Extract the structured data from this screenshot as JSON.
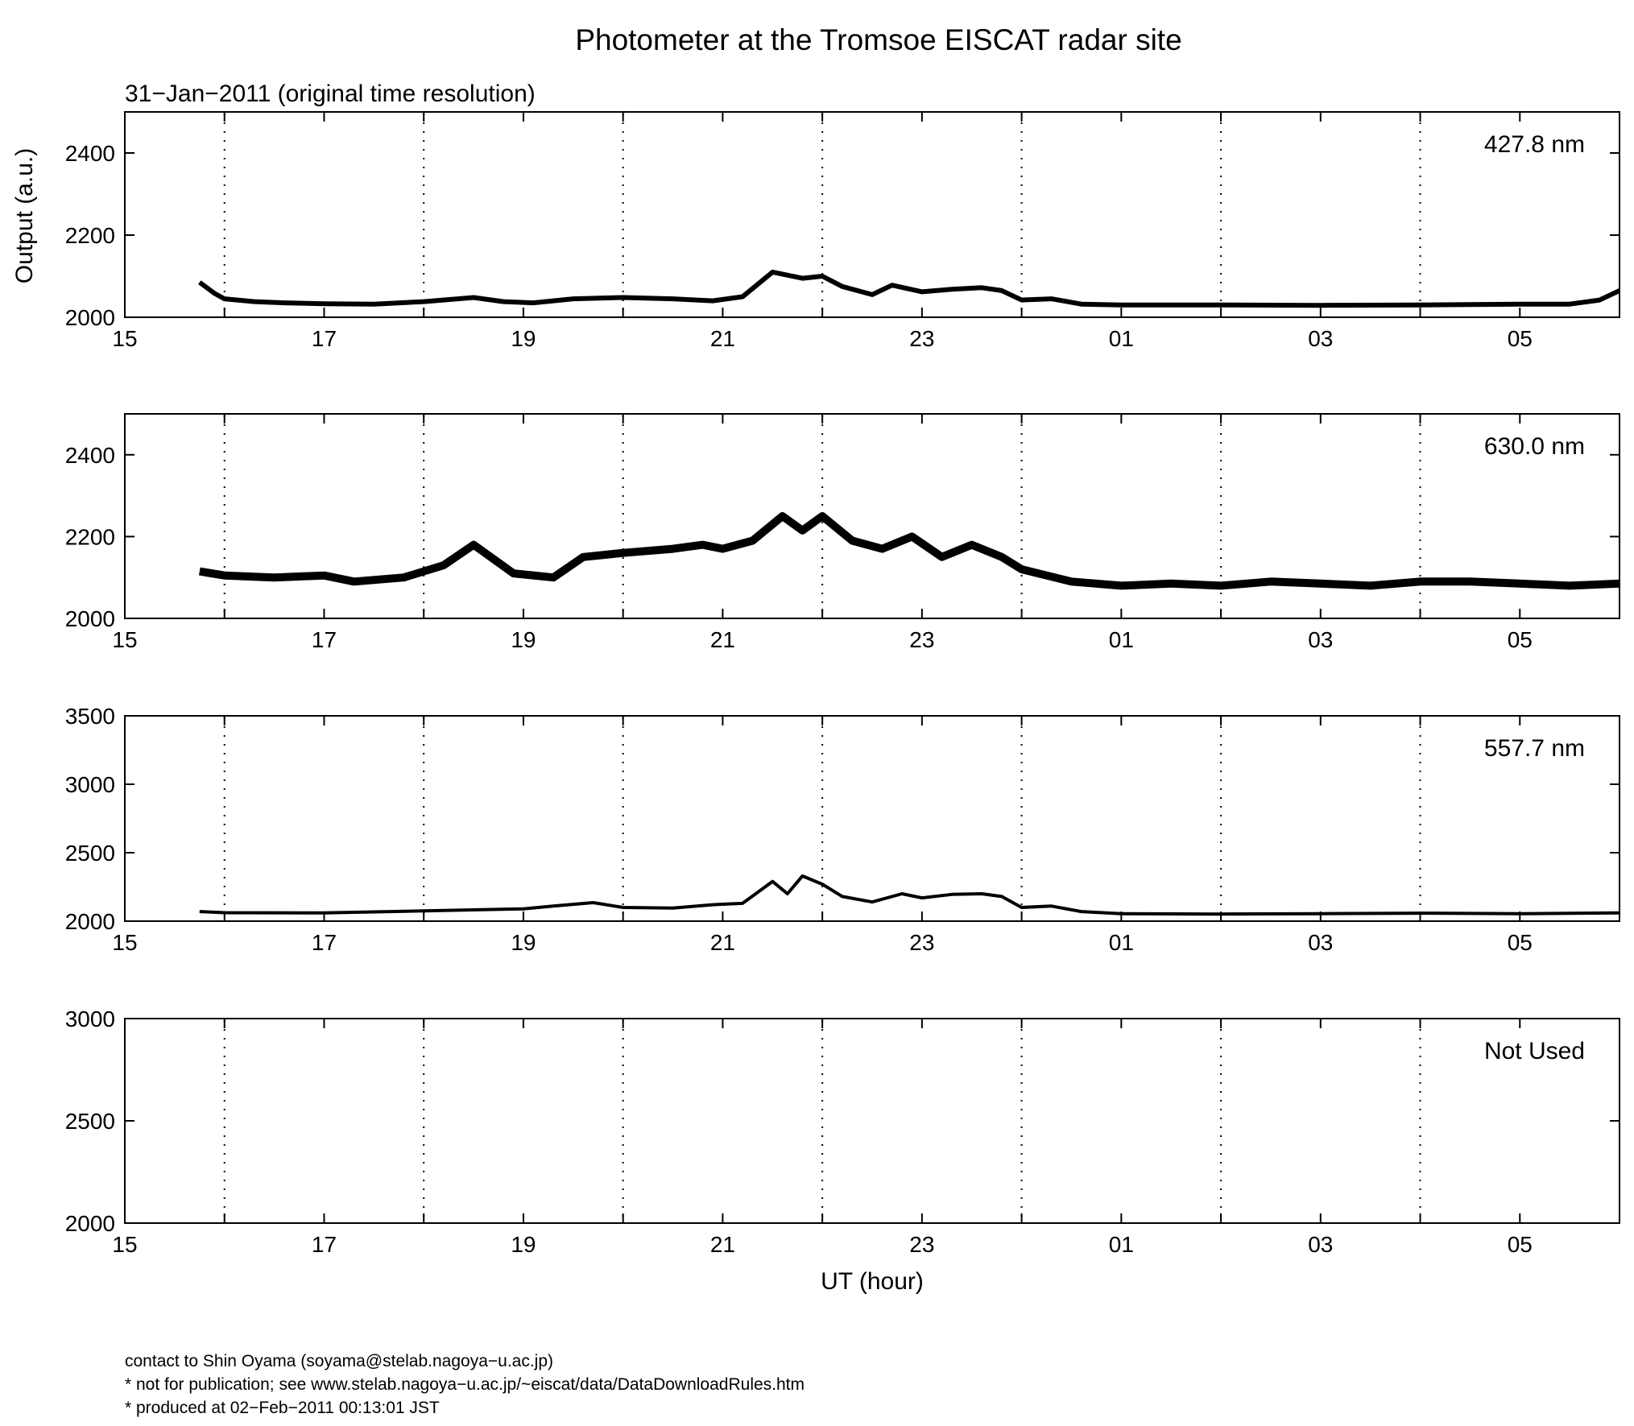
{
  "figure": {
    "title": "Photometer at the Tromsoe EISCAT radar site",
    "subtitle": "31−Jan−2011 (original time resolution)",
    "ylabel": "Output (a.u.)",
    "xlabel": "UT (hour)",
    "footer": [
      "contact to Shin Oyama (soyama@stelab.nagoya−u.ac.jp)",
      "* not for publication; see www.stelab.nagoya−u.ac.jp/~eiscat/data/DataDownloadRules.htm",
      "* produced at 02−Feb−2011 00:13:01 JST"
    ]
  },
  "chart_data": [
    {
      "type": "line",
      "panel": "427.8 nm",
      "x_unit": "hours after 15 UT",
      "xlim": [
        0,
        15
      ],
      "x_tick_values": [
        0,
        2,
        4,
        6,
        8,
        10,
        12,
        14
      ],
      "x_tick_labels": [
        "15",
        "17",
        "19",
        "21",
        "23",
        "01",
        "03",
        "05"
      ],
      "x_minor_grid": [
        1,
        3,
        5,
        7,
        9,
        11,
        13
      ],
      "ylim": [
        2000,
        2500
      ],
      "y_ticks": [
        2000,
        2200,
        2400
      ],
      "grid": "dotted vertical at odd hours",
      "ylabel": "Output (a.u.)",
      "series": [
        {
          "x": [
            0.75,
            0.9,
            1.0,
            1.3,
            1.6,
            2.0,
            2.5,
            3.0,
            3.5,
            3.8,
            4.1,
            4.5,
            5.0,
            5.5,
            5.9,
            6.2,
            6.5,
            6.8,
            7.0,
            7.2,
            7.5,
            7.7,
            8.0,
            8.3,
            8.6,
            8.8,
            9.0,
            9.3,
            9.6,
            10.0,
            11.0,
            12.0,
            13.0,
            14.0,
            14.5,
            14.8,
            15.0
          ],
          "y": [
            2085,
            2058,
            2045,
            2038,
            2035,
            2033,
            2032,
            2038,
            2048,
            2038,
            2035,
            2045,
            2048,
            2045,
            2040,
            2050,
            2110,
            2095,
            2100,
            2075,
            2055,
            2078,
            2062,
            2068,
            2072,
            2065,
            2042,
            2045,
            2032,
            2030,
            2030,
            2029,
            2030,
            2032,
            2032,
            2042,
            2065
          ]
        }
      ]
    },
    {
      "type": "line",
      "panel": "630.0 nm",
      "x_unit": "hours after 15 UT",
      "xlim": [
        0,
        15
      ],
      "x_tick_values": [
        0,
        2,
        4,
        6,
        8,
        10,
        12,
        14
      ],
      "x_tick_labels": [
        "15",
        "17",
        "19",
        "21",
        "23",
        "01",
        "03",
        "05"
      ],
      "ylim": [
        2000,
        2500
      ],
      "y_ticks": [
        2000,
        2200,
        2400
      ],
      "series": [
        {
          "x": [
            0.75,
            1.0,
            1.5,
            2.0,
            2.3,
            2.8,
            3.2,
            3.5,
            3.9,
            4.3,
            4.6,
            5.0,
            5.5,
            5.8,
            6.0,
            6.3,
            6.6,
            6.8,
            7.0,
            7.3,
            7.6,
            7.9,
            8.2,
            8.5,
            8.8,
            9.0,
            9.5,
            10.0,
            10.5,
            11.0,
            11.5,
            12.0,
            12.5,
            13.0,
            13.5,
            14.0,
            14.5,
            15.0
          ],
          "y": [
            2115,
            2105,
            2100,
            2105,
            2090,
            2100,
            2130,
            2180,
            2110,
            2100,
            2150,
            2160,
            2170,
            2180,
            2170,
            2190,
            2250,
            2215,
            2250,
            2190,
            2170,
            2200,
            2150,
            2180,
            2150,
            2120,
            2090,
            2080,
            2085,
            2080,
            2090,
            2085,
            2080,
            2090,
            2090,
            2085,
            2080,
            2085
          ]
        }
      ]
    },
    {
      "type": "line",
      "panel": "557.7 nm",
      "x_unit": "hours after 15 UT",
      "xlim": [
        0,
        15
      ],
      "x_tick_values": [
        0,
        2,
        4,
        6,
        8,
        10,
        12,
        14
      ],
      "x_tick_labels": [
        "15",
        "17",
        "19",
        "21",
        "23",
        "01",
        "03",
        "05"
      ],
      "ylim": [
        2000,
        3500
      ],
      "y_ticks": [
        2000,
        2500,
        3000,
        3500
      ],
      "series": [
        {
          "x": [
            0.75,
            1.0,
            2.0,
            3.0,
            4.0,
            4.3,
            4.7,
            5.0,
            5.5,
            5.9,
            6.2,
            6.5,
            6.65,
            6.8,
            7.0,
            7.2,
            7.5,
            7.8,
            8.0,
            8.3,
            8.6,
            8.8,
            9.0,
            9.3,
            9.6,
            10.0,
            11.0,
            12.0,
            13.0,
            14.0,
            15.0
          ],
          "y": [
            2070,
            2062,
            2060,
            2075,
            2090,
            2110,
            2135,
            2100,
            2095,
            2120,
            2130,
            2290,
            2200,
            2330,
            2270,
            2180,
            2140,
            2200,
            2170,
            2195,
            2200,
            2180,
            2100,
            2110,
            2070,
            2055,
            2052,
            2055,
            2058,
            2055,
            2060
          ]
        }
      ]
    },
    {
      "type": "line",
      "panel": "Not Used",
      "x_unit": "hours after 15 UT",
      "xlim": [
        0,
        15
      ],
      "x_tick_values": [
        0,
        2,
        4,
        6,
        8,
        10,
        12,
        14
      ],
      "x_tick_labels": [
        "15",
        "17",
        "19",
        "21",
        "23",
        "01",
        "03",
        "05"
      ],
      "ylim": [
        2000,
        3000
      ],
      "y_ticks": [
        2000,
        2500,
        3000
      ],
      "xlabel": "UT (hour)",
      "series": []
    }
  ]
}
